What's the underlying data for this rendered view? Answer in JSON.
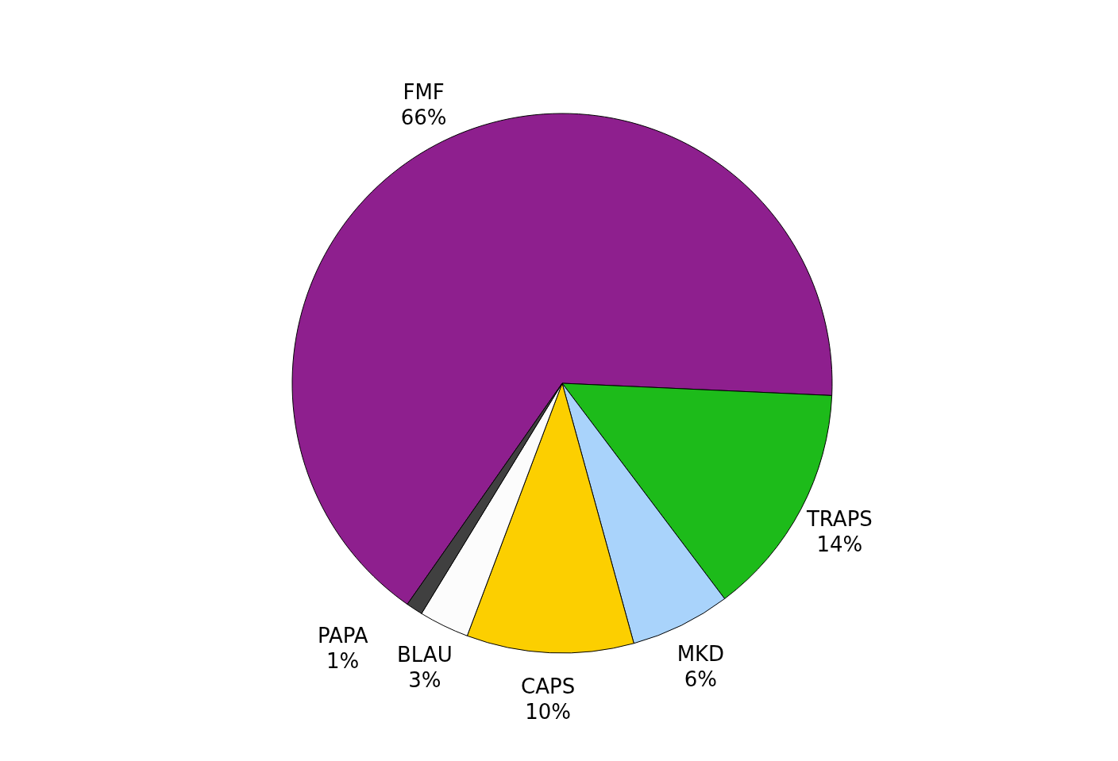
{
  "chart_data": {
    "type": "pie",
    "categories": [
      "FMF",
      "TRAPS",
      "MKD",
      "CAPS",
      "BLAU",
      "PAPA"
    ],
    "values": [
      66,
      14,
      6,
      10,
      3,
      1
    ],
    "value_labels": [
      "66%",
      "14%",
      "6%",
      "10%",
      "3%",
      "1%"
    ],
    "colors": [
      "#8e1f8e",
      "#1dbb1a",
      "#a9d3fb",
      "#fccf00",
      "#fcfcfc",
      "#404040"
    ],
    "legend": false
  }
}
